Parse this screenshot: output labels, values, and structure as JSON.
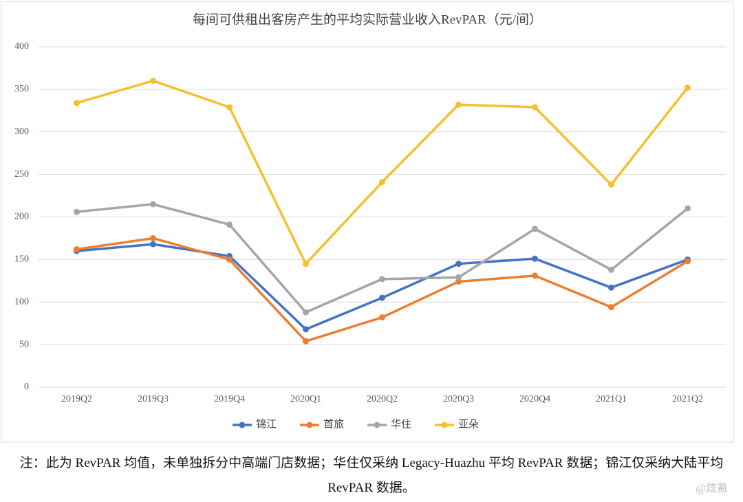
{
  "chart_data": {
    "type": "line",
    "title": "每间可供租出客房产生的平均实际营业收入RevPAR（元/间）",
    "categories": [
      "2019Q2",
      "2019Q3",
      "2019Q4",
      "2020Q1",
      "2020Q2",
      "2020Q3",
      "2020Q4",
      "2021Q1",
      "2021Q2"
    ],
    "series": [
      {
        "name": "锦江",
        "color": "#4472c4",
        "values": [
          160,
          168,
          154,
          68,
          105,
          145,
          151,
          117,
          150
        ]
      },
      {
        "name": "首旅",
        "color": "#ed7d31",
        "values": [
          162,
          175,
          150,
          54,
          82,
          124,
          131,
          94,
          148
        ]
      },
      {
        "name": "华住",
        "color": "#a5a5a5",
        "values": [
          206,
          215,
          191,
          88,
          127,
          129,
          186,
          138,
          210
        ]
      },
      {
        "name": "亚朵",
        "color": "#f4c12c",
        "values": [
          334,
          360,
          329,
          145,
          241,
          332,
          329,
          238,
          352
        ]
      }
    ],
    "ylim": [
      0,
      400
    ],
    "yticks": [
      0,
      50,
      100,
      150,
      200,
      250,
      300,
      350,
      400
    ],
    "grid": true,
    "legend": "bottom"
  },
  "note": "注：此为 RevPAR 均值，未单独拆分中高端门店数据；华住仅采纳 Legacy-Huazhu 平均 RevPAR 数据；锦江仅采纳大陆平均 RevPAR 数据。",
  "watermark": "@炫氪"
}
